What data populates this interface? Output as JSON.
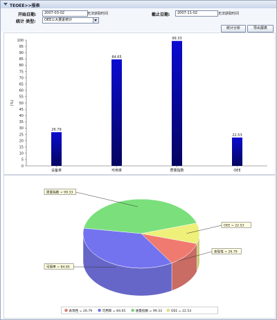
{
  "window": {
    "title": "TEOEE>>报表"
  },
  "form": {
    "start_label": "开始日期:",
    "start_value": "2007-03-02",
    "start_hint": "无法获取时间",
    "end_label": "截止日期:",
    "end_value": "2007-11-02",
    "end_hint": "无法获取时间",
    "type_label": "统计 类型:",
    "type_value": "OEE三大要素统计"
  },
  "buttons": {
    "analyze": "统计分析",
    "export": "导出报表"
  },
  "chart_data": [
    {
      "type": "bar",
      "categories": [
        "设备率",
        "可用率",
        "质量指数",
        "OEE"
      ],
      "values": [
        26.79,
        84.65,
        99.33,
        22.53
      ],
      "value_labels": [
        "26.79",
        "84.65",
        "99.33",
        "22.53"
      ],
      "ylabel": "(%)",
      "ylim": [
        0,
        100
      ],
      "yticks": [
        "0",
        "5",
        "10",
        "15",
        "20",
        "25",
        "30",
        "35",
        "40",
        "45",
        "50",
        "55",
        "60",
        "65",
        "70",
        "75",
        "80",
        "85",
        "90",
        "95",
        "100"
      ],
      "bar_color": "#0b0bd0",
      "grid": false
    },
    {
      "type": "pie",
      "labels": [
        "表现性",
        "可用率",
        "质量指数",
        "OEE"
      ],
      "values": [
        26.79,
        84.65,
        99.33,
        22.53
      ],
      "colors": [
        "#f07a70",
        "#7373f0",
        "#7be07b",
        "#eef07a"
      ],
      "callouts": [
        "表现性 = 26.79",
        "可用率 = 84.65",
        "质量指数 = 99.33",
        "OEE = 22.53"
      ],
      "legend": [
        "表现性 = 26.79",
        "可用率 = 84.65",
        "质量指数 = 99.33",
        "OEE = 22.53"
      ],
      "legend_position": "bottom"
    }
  ]
}
